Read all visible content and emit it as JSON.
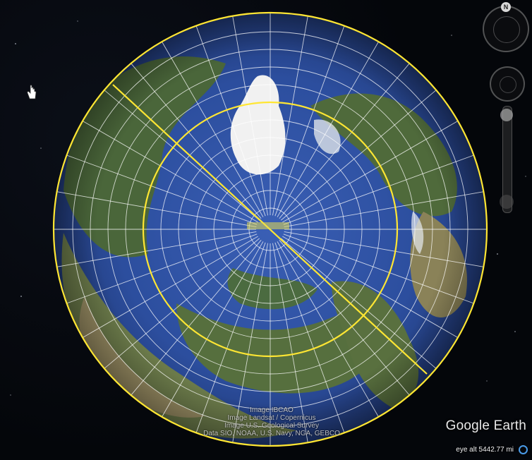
{
  "app": {
    "brand": "Google Earth"
  },
  "controls": {
    "north_label": "N",
    "eye_altitude": "eye alt 5442.77 mi"
  },
  "attribution": [
    "Image IBCAO",
    "Image Landsat / Copernicus",
    "Image U.S. Geological Survey",
    "Data SIO, NOAA, U.S. Navy, NGA, GEBCO"
  ],
  "colors": {
    "overlay_line": "#ffe633",
    "ocean": "#2a4d9c",
    "land": "#4e6b3c",
    "ice": "#f2f2f2",
    "space": "#04060a"
  },
  "icons": [
    "hand-cursor-icon",
    "north-arrow-icon",
    "look-joystick-icon",
    "move-joystick-icon",
    "zoom-slider-icon"
  ]
}
